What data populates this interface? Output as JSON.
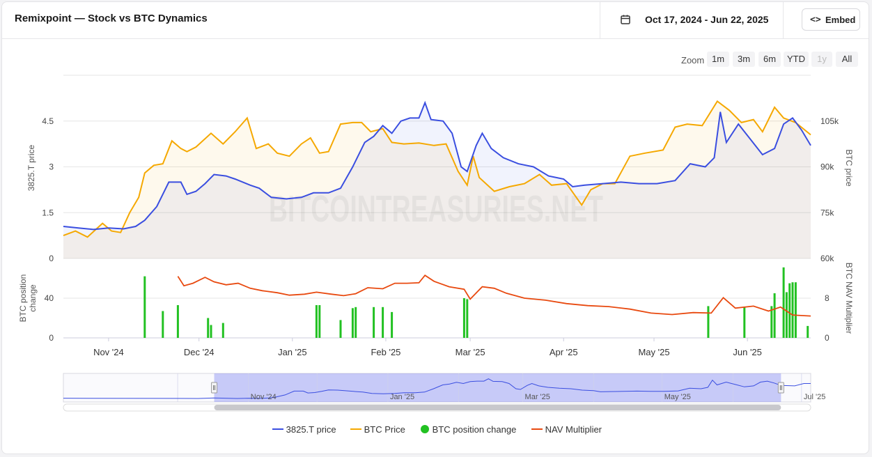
{
  "header": {
    "title": "Remixpoint — Stock vs BTC Dynamics",
    "date_range": "Oct 17, 2024 - Jun 22, 2025",
    "embed_label": "Embed",
    "embed_icon": "<>"
  },
  "zoom": {
    "label": "Zoom",
    "buttons": [
      "1m",
      "3m",
      "6m",
      "YTD",
      "1y",
      "All"
    ],
    "disabled": "1y"
  },
  "watermark": "BITCOINTREASURIES.NET",
  "colors": {
    "stock": "#3a4ee0",
    "btc": "#f5a800",
    "btc_change": "#22c122",
    "nav": "#e8490f"
  },
  "chart_data": {
    "type": "line",
    "x_start": "2024-10-17",
    "x_end": "2025-06-22",
    "x_ticks": [
      "Nov '24",
      "Dec '24",
      "Jan '25",
      "Feb '25",
      "Mar '25",
      "Apr '25",
      "May '25",
      "Jun '25"
    ],
    "panels": [
      {
        "ylabel_left": "3825.T price",
        "ylabel_right": "BTC price",
        "yticks_left": [
          "0",
          "1.5",
          "3",
          "4.5"
        ],
        "yticks_right": [
          "60k",
          "75k",
          "90k",
          "105k"
        ],
        "ylim_left": [
          0,
          6
        ],
        "ylim_right": [
          60000,
          120000
        ],
        "series": [
          {
            "name": "3825.T price",
            "axis": "left",
            "points": [
              [
                "2024-10-17",
                1.05
              ],
              [
                "2024-10-22",
                1.0
              ],
              [
                "2024-10-27",
                0.95
              ],
              [
                "2024-11-01",
                1.0
              ],
              [
                "2024-11-06",
                0.97
              ],
              [
                "2024-11-10",
                1.05
              ],
              [
                "2024-11-13",
                1.25
              ],
              [
                "2024-11-17",
                1.7
              ],
              [
                "2024-11-21",
                2.5
              ],
              [
                "2024-11-25",
                2.5
              ],
              [
                "2024-11-27",
                2.1
              ],
              [
                "2024-11-30",
                2.2
              ],
              [
                "2024-12-03",
                2.45
              ],
              [
                "2024-12-06",
                2.75
              ],
              [
                "2024-12-10",
                2.7
              ],
              [
                "2024-12-13",
                2.6
              ],
              [
                "2024-12-18",
                2.4
              ],
              [
                "2024-12-21",
                2.3
              ],
              [
                "2024-12-25",
                2.0
              ],
              [
                "2024-12-30",
                1.95
              ],
              [
                "2025-01-04",
                2.0
              ],
              [
                "2025-01-08",
                2.15
              ],
              [
                "2025-01-13",
                2.15
              ],
              [
                "2025-01-17",
                2.3
              ],
              [
                "2025-01-21",
                3.0
              ],
              [
                "2025-01-25",
                3.8
              ],
              [
                "2025-01-28",
                4.0
              ],
              [
                "2025-01-31",
                4.35
              ],
              [
                "2025-02-03",
                4.1
              ],
              [
                "2025-02-06",
                4.5
              ],
              [
                "2025-02-09",
                4.6
              ],
              [
                "2025-02-12",
                4.6
              ],
              [
                "2025-02-14",
                5.1
              ],
              [
                "2025-02-16",
                4.55
              ],
              [
                "2025-02-20",
                4.5
              ],
              [
                "2025-02-23",
                4.1
              ],
              [
                "2025-02-26",
                3.0
              ],
              [
                "2025-02-28",
                2.85
              ],
              [
                "2025-03-03",
                3.7
              ],
              [
                "2025-03-05",
                4.1
              ],
              [
                "2025-03-08",
                3.6
              ],
              [
                "2025-03-12",
                3.3
              ],
              [
                "2025-03-17",
                3.1
              ],
              [
                "2025-03-22",
                3.0
              ],
              [
                "2025-03-27",
                2.7
              ],
              [
                "2025-04-01",
                2.6
              ],
              [
                "2025-04-04",
                2.35
              ],
              [
                "2025-04-08",
                2.4
              ],
              [
                "2025-04-14",
                2.45
              ],
              [
                "2025-04-20",
                2.5
              ],
              [
                "2025-04-26",
                2.45
              ],
              [
                "2025-05-02",
                2.45
              ],
              [
                "2025-05-08",
                2.55
              ],
              [
                "2025-05-13",
                3.1
              ],
              [
                "2025-05-18",
                3.0
              ],
              [
                "2025-05-21",
                3.3
              ],
              [
                "2025-05-23",
                4.8
              ],
              [
                "2025-05-25",
                3.8
              ],
              [
                "2025-05-29",
                4.4
              ],
              [
                "2025-06-02",
                3.9
              ],
              [
                "2025-06-06",
                3.4
              ],
              [
                "2025-06-10",
                3.6
              ],
              [
                "2025-06-13",
                4.4
              ],
              [
                "2025-06-16",
                4.6
              ],
              [
                "2025-06-19",
                4.2
              ],
              [
                "2025-06-22",
                3.7
              ]
            ]
          },
          {
            "name": "BTC Price",
            "axis": "right",
            "points": [
              [
                "2024-10-17",
                67500
              ],
              [
                "2024-10-21",
                69000
              ],
              [
                "2024-10-25",
                67000
              ],
              [
                "2024-10-30",
                71500
              ],
              [
                "2024-11-02",
                69000
              ],
              [
                "2024-11-05",
                68500
              ],
              [
                "2024-11-08",
                75000
              ],
              [
                "2024-11-11",
                80000
              ],
              [
                "2024-11-13",
                88000
              ],
              [
                "2024-11-16",
                90500
              ],
              [
                "2024-11-19",
                91000
              ],
              [
                "2024-11-22",
                98500
              ],
              [
                "2024-11-25",
                96000
              ],
              [
                "2024-11-27",
                95000
              ],
              [
                "2024-11-30",
                96500
              ],
              [
                "2024-12-05",
                101000
              ],
              [
                "2024-12-09",
                97500
              ],
              [
                "2024-12-13",
                101500
              ],
              [
                "2024-12-17",
                106000
              ],
              [
                "2024-12-20",
                96000
              ],
              [
                "2024-12-24",
                97500
              ],
              [
                "2024-12-27",
                94500
              ],
              [
                "2024-12-31",
                93500
              ],
              [
                "2025-01-04",
                97500
              ],
              [
                "2025-01-07",
                99500
              ],
              [
                "2025-01-10",
                94500
              ],
              [
                "2025-01-13",
                95000
              ],
              [
                "2025-01-17",
                104000
              ],
              [
                "2025-01-21",
                104500
              ],
              [
                "2025-01-24",
                104500
              ],
              [
                "2025-01-27",
                101500
              ],
              [
                "2025-01-31",
                102500
              ],
              [
                "2025-02-03",
                98000
              ],
              [
                "2025-02-07",
                97500
              ],
              [
                "2025-02-12",
                97800
              ],
              [
                "2025-02-17",
                97000
              ],
              [
                "2025-02-21",
                97500
              ],
              [
                "2025-02-25",
                88500
              ],
              [
                "2025-02-28",
                84000
              ],
              [
                "2025-03-02",
                93500
              ],
              [
                "2025-03-04",
                86500
              ],
              [
                "2025-03-09",
                82000
              ],
              [
                "2025-03-14",
                83500
              ],
              [
                "2025-03-19",
                84500
              ],
              [
                "2025-03-24",
                87500
              ],
              [
                "2025-03-28",
                84000
              ],
              [
                "2025-04-02",
                84500
              ],
              [
                "2025-04-07",
                77500
              ],
              [
                "2025-04-10",
                82500
              ],
              [
                "2025-04-14",
                84500
              ],
              [
                "2025-04-18",
                84500
              ],
              [
                "2025-04-23",
                93500
              ],
              [
                "2025-04-28",
                94500
              ],
              [
                "2025-05-04",
                95500
              ],
              [
                "2025-05-08",
                103000
              ],
              [
                "2025-05-12",
                104000
              ],
              [
                "2025-05-17",
                103500
              ],
              [
                "2025-05-22",
                111500
              ],
              [
                "2025-05-26",
                108500
              ],
              [
                "2025-05-30",
                104500
              ],
              [
                "2025-06-03",
                105500
              ],
              [
                "2025-06-06",
                101500
              ],
              [
                "2025-06-10",
                109500
              ],
              [
                "2025-06-13",
                106000
              ],
              [
                "2025-06-17",
                104500
              ],
              [
                "2025-06-22",
                100500
              ]
            ]
          }
        ]
      },
      {
        "ylabel_left": "BTC position change",
        "ylabel_right": "BTC NAV Multiplier",
        "yticks_left": [
          "0",
          "40"
        ],
        "yticks_right": [
          "0",
          "8"
        ],
        "ylim_left": [
          0,
          80
        ],
        "ylim_right": [
          0,
          16
        ],
        "series": [
          {
            "name": "BTC position change",
            "axis": "left",
            "kind": "column",
            "points": [
              [
                "2024-11-13",
                62
              ],
              [
                "2024-11-19",
                27
              ],
              [
                "2024-11-24",
                33
              ],
              [
                "2024-12-04",
                20
              ],
              [
                "2024-12-05",
                13
              ],
              [
                "2024-12-09",
                15
              ],
              [
                "2025-01-09",
                33
              ],
              [
                "2025-01-10",
                33
              ],
              [
                "2025-01-17",
                18
              ],
              [
                "2025-01-21",
                30
              ],
              [
                "2025-01-22",
                31
              ],
              [
                "2025-01-28",
                31
              ],
              [
                "2025-01-31",
                31
              ],
              [
                "2025-02-03",
                26
              ],
              [
                "2025-02-27",
                40
              ],
              [
                "2025-02-28",
                39
              ],
              [
                "2025-05-19",
                32
              ],
              [
                "2025-05-31",
                31
              ],
              [
                "2025-06-09",
                32
              ],
              [
                "2025-06-10",
                45
              ],
              [
                "2025-06-13",
                71
              ],
              [
                "2025-06-14",
                46
              ],
              [
                "2025-06-15",
                55
              ],
              [
                "2025-06-16",
                56
              ],
              [
                "2025-06-17",
                56
              ],
              [
                "2025-06-21",
                12
              ]
            ]
          },
          {
            "name": "NAV Multiplier",
            "axis": "right",
            "kind": "line",
            "points": [
              [
                "2024-11-24",
                12.4
              ],
              [
                "2024-11-26",
                10.5
              ],
              [
                "2024-11-29",
                11.0
              ],
              [
                "2024-12-03",
                12.2
              ],
              [
                "2024-12-06",
                11.3
              ],
              [
                "2024-12-10",
                10.7
              ],
              [
                "2024-12-14",
                11.0
              ],
              [
                "2024-12-18",
                10.0
              ],
              [
                "2024-12-22",
                9.5
              ],
              [
                "2024-12-27",
                9.1
              ],
              [
                "2024-12-31",
                8.6
              ],
              [
                "2025-01-05",
                8.8
              ],
              [
                "2025-01-09",
                9.2
              ],
              [
                "2025-01-14",
                8.8
              ],
              [
                "2025-01-18",
                8.5
              ],
              [
                "2025-01-22",
                8.9
              ],
              [
                "2025-01-26",
                10.1
              ],
              [
                "2025-01-31",
                9.9
              ],
              [
                "2025-02-04",
                11.0
              ],
              [
                "2025-02-08",
                11.0
              ],
              [
                "2025-02-12",
                11.1
              ],
              [
                "2025-02-14",
                12.6
              ],
              [
                "2025-02-17",
                11.4
              ],
              [
                "2025-02-22",
                10.3
              ],
              [
                "2025-02-27",
                9.8
              ],
              [
                "2025-03-01",
                7.8
              ],
              [
                "2025-03-05",
                10.3
              ],
              [
                "2025-03-09",
                10.0
              ],
              [
                "2025-03-13",
                9.0
              ],
              [
                "2025-03-19",
                8.0
              ],
              [
                "2025-03-26",
                7.6
              ],
              [
                "2025-04-02",
                6.9
              ],
              [
                "2025-04-09",
                6.5
              ],
              [
                "2025-04-16",
                6.3
              ],
              [
                "2025-04-23",
                5.8
              ],
              [
                "2025-04-30",
                5.0
              ],
              [
                "2025-05-07",
                4.7
              ],
              [
                "2025-05-14",
                5.1
              ],
              [
                "2025-05-20",
                5.0
              ],
              [
                "2025-05-24",
                8.1
              ],
              [
                "2025-05-28",
                6.0
              ],
              [
                "2025-06-03",
                6.4
              ],
              [
                "2025-06-08",
                5.4
              ],
              [
                "2025-06-12",
                6.2
              ],
              [
                "2025-06-16",
                4.6
              ],
              [
                "2025-06-22",
                4.4
              ]
            ]
          }
        ]
      }
    ],
    "navigator_ticks": [
      "Nov '24",
      "Jan '25",
      "Mar '25",
      "May '25",
      "Jul '25"
    ],
    "legend": [
      "3825.T price",
      "BTC Price",
      "BTC position change",
      "NAV Multiplier"
    ]
  }
}
